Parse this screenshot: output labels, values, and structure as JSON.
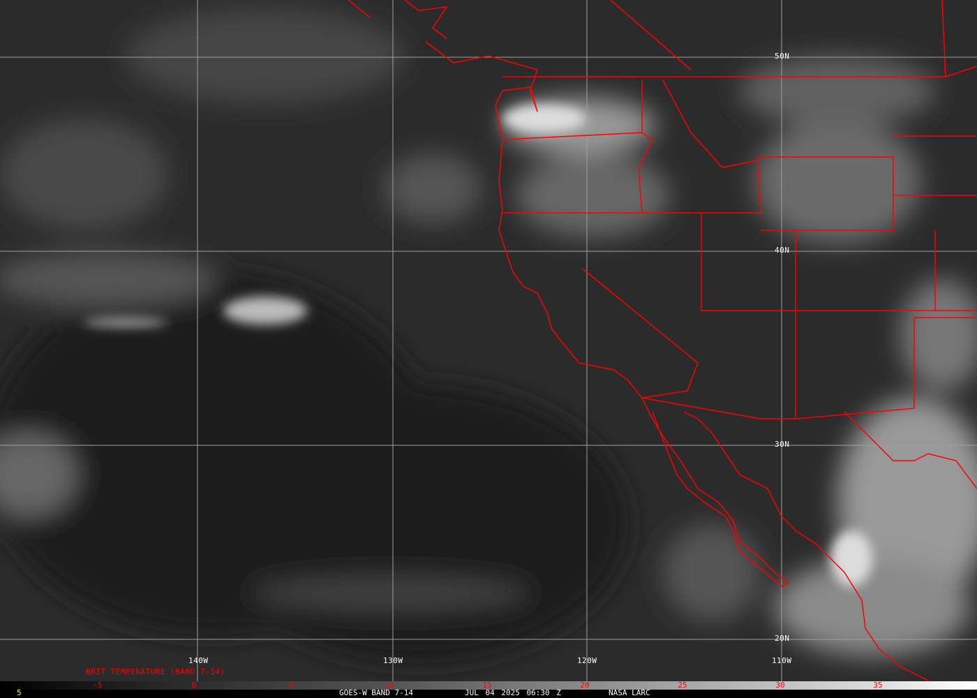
{
  "map": {
    "latitude_labels": [
      "50N",
      "40N",
      "30N",
      "20N"
    ],
    "longitude_labels": [
      "140W",
      "130W",
      "120W",
      "110W"
    ],
    "border_color": "#ff0000",
    "grid_color": "#a0a0a0"
  },
  "legend": {
    "title": "BRIT TEMPERATURE (BAND 7-14)",
    "ticks": [
      "-5",
      "0",
      "5",
      "10",
      "15",
      "20",
      "25",
      "30",
      "35"
    ],
    "corner_value": "5"
  },
  "footer": {
    "satellite": "GOES-W BAND 7-14",
    "datetime": "JUL 04 2025 06:30 Z",
    "source": "NASA LARC"
  }
}
